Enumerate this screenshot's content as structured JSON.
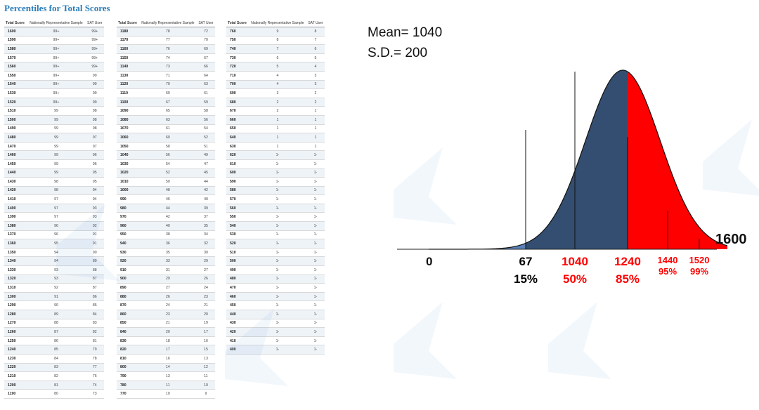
{
  "title": "Percentiles for Total Scores",
  "table_headers": {
    "score": "Total Score",
    "national": "Nationally Representative Sample",
    "user": "SAT User"
  },
  "table1": [
    [
      "1600",
      "99+",
      "99+"
    ],
    [
      "1590",
      "99+",
      "99+"
    ],
    [
      "1580",
      "99+",
      "99+"
    ],
    [
      "1570",
      "99+",
      "99+"
    ],
    [
      "1560",
      "99+",
      "99+"
    ],
    [
      "1550",
      "99+",
      "99"
    ],
    [
      "1540",
      "99+",
      "99"
    ],
    [
      "1530",
      "99+",
      "99"
    ],
    [
      "1520",
      "99+",
      "99"
    ],
    [
      "1510",
      "99",
      "98"
    ],
    [
      "1500",
      "99",
      "98"
    ],
    [
      "1490",
      "99",
      "98"
    ],
    [
      "1480",
      "99",
      "97"
    ],
    [
      "1470",
      "99",
      "97"
    ],
    [
      "1460",
      "99",
      "96"
    ],
    [
      "1450",
      "99",
      "96"
    ],
    [
      "1440",
      "99",
      "95"
    ],
    [
      "1430",
      "98",
      "95"
    ],
    [
      "1420",
      "98",
      "94"
    ],
    [
      "1410",
      "97",
      "94"
    ],
    [
      "1400",
      "97",
      "93"
    ],
    [
      "1390",
      "97",
      "93"
    ],
    [
      "1380",
      "96",
      "92"
    ],
    [
      "1370",
      "96",
      "91"
    ],
    [
      "1360",
      "95",
      "91"
    ],
    [
      "1350",
      "94",
      "90"
    ],
    [
      "1340",
      "94",
      "89"
    ],
    [
      "1330",
      "93",
      "88"
    ],
    [
      "1320",
      "93",
      "87"
    ],
    [
      "1310",
      "92",
      "87"
    ],
    [
      "1300",
      "91",
      "86"
    ],
    [
      "1290",
      "90",
      "85"
    ],
    [
      "1280",
      "89",
      "84"
    ],
    [
      "1270",
      "88",
      "83"
    ],
    [
      "1260",
      "87",
      "82"
    ],
    [
      "1250",
      "86",
      "81"
    ],
    [
      "1240",
      "85",
      "79"
    ],
    [
      "1230",
      "84",
      "78"
    ],
    [
      "1220",
      "83",
      "77"
    ],
    [
      "1210",
      "82",
      "76"
    ],
    [
      "1200",
      "81",
      "74"
    ],
    [
      "1190",
      "80",
      "73"
    ]
  ],
  "table2": [
    [
      "1180",
      "78",
      "72"
    ],
    [
      "1170",
      "77",
      "70"
    ],
    [
      "1160",
      "76",
      "69"
    ],
    [
      "1150",
      "74",
      "67"
    ],
    [
      "1140",
      "73",
      "66"
    ],
    [
      "1130",
      "71",
      "64"
    ],
    [
      "1120",
      "70",
      "63"
    ],
    [
      "1110",
      "69",
      "61"
    ],
    [
      "1100",
      "67",
      "59"
    ],
    [
      "1090",
      "65",
      "58"
    ],
    [
      "1080",
      "63",
      "56"
    ],
    [
      "1070",
      "61",
      "54"
    ],
    [
      "1060",
      "60",
      "52"
    ],
    [
      "1050",
      "58",
      "51"
    ],
    [
      "1040",
      "56",
      "49"
    ],
    [
      "1030",
      "54",
      "47"
    ],
    [
      "1020",
      "52",
      "45"
    ],
    [
      "1010",
      "50",
      "44"
    ],
    [
      "1000",
      "48",
      "42"
    ],
    [
      "990",
      "46",
      "40"
    ],
    [
      "980",
      "44",
      "39"
    ],
    [
      "970",
      "42",
      "37"
    ],
    [
      "960",
      "40",
      "35"
    ],
    [
      "950",
      "38",
      "34"
    ],
    [
      "940",
      "36",
      "32"
    ],
    [
      "930",
      "35",
      "30"
    ],
    [
      "920",
      "33",
      "29"
    ],
    [
      "910",
      "31",
      "27"
    ],
    [
      "900",
      "29",
      "26"
    ],
    [
      "890",
      "27",
      "24"
    ],
    [
      "880",
      "26",
      "23"
    ],
    [
      "870",
      "24",
      "21"
    ],
    [
      "860",
      "23",
      "20"
    ],
    [
      "850",
      "21",
      "19"
    ],
    [
      "840",
      "20",
      "17"
    ],
    [
      "830",
      "18",
      "16"
    ],
    [
      "820",
      "17",
      "15"
    ],
    [
      "810",
      "16",
      "13"
    ],
    [
      "800",
      "14",
      "12"
    ],
    [
      "790",
      "13",
      "11"
    ],
    [
      "780",
      "11",
      "10"
    ],
    [
      "770",
      "10",
      "9"
    ]
  ],
  "table3": [
    [
      "760",
      "9",
      "8"
    ],
    [
      "750",
      "8",
      "7"
    ],
    [
      "740",
      "7",
      "6"
    ],
    [
      "730",
      "6",
      "5"
    ],
    [
      "720",
      "5",
      "4"
    ],
    [
      "710",
      "4",
      "3"
    ],
    [
      "700",
      "4",
      "3"
    ],
    [
      "690",
      "3",
      "2"
    ],
    [
      "680",
      "2",
      "2"
    ],
    [
      "670",
      "2",
      "1"
    ],
    [
      "660",
      "1",
      "1"
    ],
    [
      "650",
      "1",
      "1"
    ],
    [
      "640",
      "1",
      "1"
    ],
    [
      "630",
      "1",
      "1"
    ],
    [
      "620",
      "1-",
      "1-"
    ],
    [
      "610",
      "1-",
      "1-"
    ],
    [
      "600",
      "1-",
      "1-"
    ],
    [
      "590",
      "1-",
      "1-"
    ],
    [
      "580",
      "1-",
      "1-"
    ],
    [
      "570",
      "1-",
      "1-"
    ],
    [
      "560",
      "1-",
      "1-"
    ],
    [
      "550",
      "1-",
      "1-"
    ],
    [
      "540",
      "1-",
      "1-"
    ],
    [
      "530",
      "1-",
      "1-"
    ],
    [
      "520",
      "1-",
      "1-"
    ],
    [
      "510",
      "1-",
      "1-"
    ],
    [
      "500",
      "1-",
      "1-"
    ],
    [
      "490",
      "1-",
      "1-"
    ],
    [
      "480",
      "1-",
      "1-"
    ],
    [
      "470",
      "1-",
      "1-"
    ],
    [
      "460",
      "1-",
      "1-"
    ],
    [
      "450",
      "1-",
      "1-"
    ],
    [
      "440",
      "1-",
      "1-"
    ],
    [
      "430",
      "1-",
      "1-"
    ],
    [
      "420",
      "1-",
      "1-"
    ],
    [
      "410",
      "1-",
      "1-"
    ],
    [
      "400",
      "1-",
      "1-"
    ]
  ],
  "stats": {
    "mean_label": "Mean= 1040",
    "sd_label": "S.D.= 200"
  },
  "colors": {
    "title": "#2a7db8",
    "left_tail": "#5b82b8",
    "center": "#334e70",
    "right_tail": "#ff0000"
  },
  "chart_data": {
    "type": "area",
    "title": "",
    "mean": 1040,
    "sd": 200,
    "xlim": [
      0,
      1600
    ],
    "markers": [
      {
        "x": 67,
        "label": "67",
        "pct": "15%",
        "color": "#000000"
      },
      {
        "x": 1040,
        "label": "1040",
        "pct": "50%",
        "color": "#ff0000"
      },
      {
        "x": 1240,
        "label": "1240",
        "pct": "85%",
        "color": "#ff0000"
      },
      {
        "x": 1440,
        "label": "1440",
        "pct": "95%",
        "color": "#ff0000"
      },
      {
        "x": 1520,
        "label": "1520",
        "pct": "99%",
        "color": "#ff0000"
      }
    ],
    "axis_labels": {
      "min": "0",
      "max": "1600"
    }
  }
}
